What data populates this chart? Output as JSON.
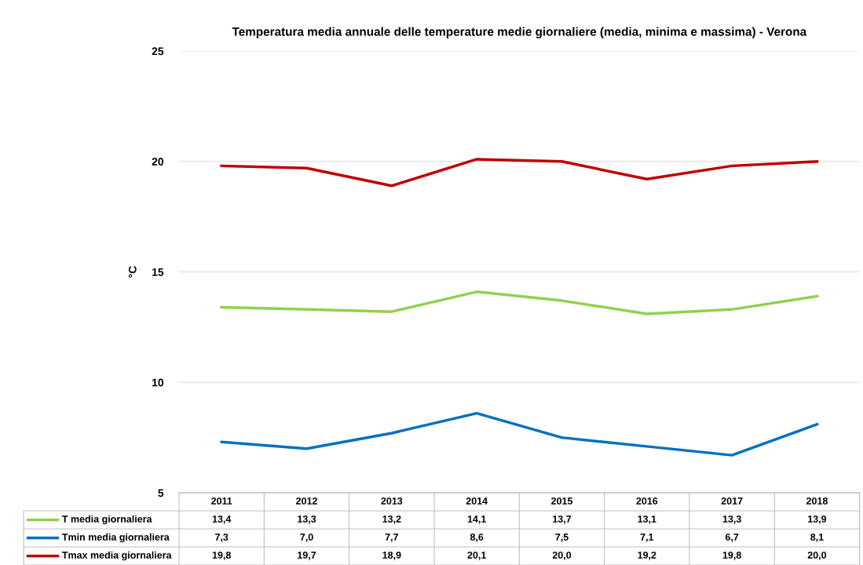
{
  "chart_data": {
    "type": "line",
    "title": "Temperatura media annuale delle temperature medie giornaliere (media, minima e massima) - Verona",
    "ylabel": "°C",
    "categories": [
      "2011",
      "2012",
      "2013",
      "2014",
      "2015",
      "2016",
      "2017",
      "2018"
    ],
    "series": [
      {
        "name": "T media giornaliera",
        "color": "#92d050",
        "values": [
          13.4,
          13.3,
          13.2,
          14.1,
          13.7,
          13.1,
          13.3,
          13.9
        ],
        "value_labels": [
          "13,4",
          "13,3",
          "13,2",
          "14,1",
          "13,7",
          "13,1",
          "13,3",
          "13,9"
        ]
      },
      {
        "name": "Tmin media giornaliera",
        "color": "#0070c0",
        "values": [
          7.3,
          7.0,
          7.7,
          8.6,
          7.5,
          7.1,
          6.7,
          8.1
        ],
        "value_labels": [
          "7,3",
          "7,0",
          "7,7",
          "8,6",
          "7,5",
          "7,1",
          "6,7",
          "8,1"
        ]
      },
      {
        "name": "Tmax media giornaliera",
        "color": "#c00000",
        "values": [
          19.8,
          19.7,
          18.9,
          20.1,
          20.0,
          19.2,
          19.8,
          20.0
        ],
        "value_labels": [
          "19,8",
          "19,7",
          "18,9",
          "20,1",
          "20,0",
          "19,2",
          "19,8",
          "20,0"
        ]
      }
    ],
    "ylim": [
      5,
      25
    ],
    "yticks": [
      5,
      10,
      15,
      20,
      25
    ],
    "grid": "y",
    "legend": "bottom",
    "marker": "none",
    "line_style": "solid"
  }
}
